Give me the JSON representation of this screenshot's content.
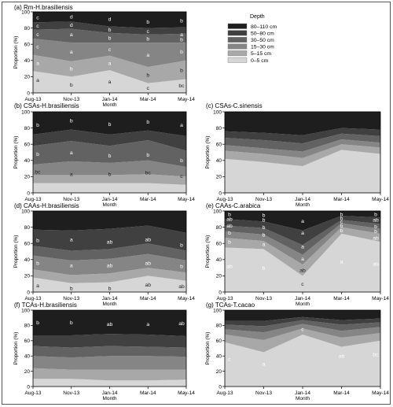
{
  "legend": {
    "title": "Depth",
    "items": [
      {
        "label": "80–110 cm",
        "color": "#1e1e1e"
      },
      {
        "label": "50–80 cm",
        "color": "#404040"
      },
      {
        "label": "30–50 cm",
        "color": "#626262"
      },
      {
        "label": "15–30 cm",
        "color": "#858585"
      },
      {
        "label": "5–15 cm",
        "color": "#a8a8a8"
      },
      {
        "label": "0–5 cm",
        "color": "#d6d6d6"
      }
    ]
  },
  "chart_data": [
    {
      "type": "area",
      "title": "(a) Rm-H.brasiliensis",
      "xlabel": "Month",
      "ylabel": "Proportion (%)",
      "ylim": [
        0,
        100
      ],
      "categories": [
        "Aug-13",
        "Nov-13",
        "Jan-14",
        "Mar-14",
        "May-14"
      ],
      "yticks": [
        0,
        20,
        40,
        60,
        80,
        100
      ],
      "series": [
        {
          "name": "0–5 cm",
          "values": [
            27,
            20,
            28,
            12,
            17
          ]
        },
        {
          "name": "5–15 cm",
          "values": [
            20,
            19,
            18,
            20,
            23
          ]
        },
        {
          "name": "15–30 cm",
          "values": [
            20,
            23,
            16,
            30,
            22
          ]
        },
        {
          "name": "30–50 cm",
          "values": [
            11,
            17,
            12,
            10,
            11
          ]
        },
        {
          "name": "50–80 cm",
          "values": [
            9,
            9,
            8,
            8,
            8
          ]
        },
        {
          "name": "80–110 cm",
          "values": [
            13,
            12,
            18,
            20,
            19
          ]
        }
      ],
      "annotations": [
        {
          "x": 0,
          "y": 16,
          "text": "a"
        },
        {
          "x": 1,
          "y": 10,
          "text": "b"
        },
        {
          "x": 2,
          "y": 14,
          "text": "a"
        },
        {
          "x": 3,
          "y": 6,
          "text": "c"
        },
        {
          "x": 4,
          "y": 9,
          "text": "bc"
        },
        {
          "x": 0,
          "y": 37,
          "text": "a"
        },
        {
          "x": 1,
          "y": 30,
          "text": "b"
        },
        {
          "x": 2,
          "y": 37,
          "text": "a"
        },
        {
          "x": 3,
          "y": 22,
          "text": "b"
        },
        {
          "x": 4,
          "y": 28,
          "text": "b"
        },
        {
          "x": 0,
          "y": 57,
          "text": "c"
        },
        {
          "x": 1,
          "y": 51,
          "text": "a"
        },
        {
          "x": 2,
          "y": 54,
          "text": "c"
        },
        {
          "x": 3,
          "y": 47,
          "text": "a"
        },
        {
          "x": 4,
          "y": 51,
          "text": "b"
        },
        {
          "x": 0,
          "y": 72,
          "text": "c"
        },
        {
          "x": 1,
          "y": 72,
          "text": "a"
        },
        {
          "x": 2,
          "y": 68,
          "text": "b"
        },
        {
          "x": 3,
          "y": 67,
          "text": "b"
        },
        {
          "x": 4,
          "y": 66,
          "text": "b"
        },
        {
          "x": 0,
          "y": 83,
          "text": "c"
        },
        {
          "x": 1,
          "y": 84,
          "text": "d"
        },
        {
          "x": 2,
          "y": 78,
          "text": "b"
        },
        {
          "x": 3,
          "y": 76,
          "text": "c"
        },
        {
          "x": 4,
          "y": 72,
          "text": "a"
        },
        {
          "x": 0,
          "y": 93,
          "text": "c"
        },
        {
          "x": 1,
          "y": 94,
          "text": "d"
        },
        {
          "x": 2,
          "y": 91,
          "text": "d"
        },
        {
          "x": 3,
          "y": 88,
          "text": "b"
        },
        {
          "x": 4,
          "y": 89,
          "text": "b"
        }
      ]
    },
    {
      "type": "area",
      "title": "(b) CSAs-H.brasiliensis",
      "xlabel": "Month",
      "ylabel": "Proportion (%)",
      "ylim": [
        0,
        100
      ],
      "categories": [
        "Aug-13",
        "Nov-13",
        "Jan-14",
        "Mar-14",
        "May-14"
      ],
      "yticks": [
        0,
        20,
        40,
        60,
        80,
        100
      ],
      "series": [
        {
          "name": "0–5 cm",
          "values": [
            12,
            12,
            12,
            12,
            10
          ]
        },
        {
          "name": "5–15 cm",
          "values": [
            10,
            10,
            10,
            11,
            10
          ]
        },
        {
          "name": "15–30 cm",
          "values": [
            13,
            17,
            15,
            17,
            12
          ]
        },
        {
          "name": "30–50 cm",
          "values": [
            23,
            25,
            21,
            25,
            20
          ]
        },
        {
          "name": "50–80 cm",
          "values": [
            14,
            14,
            14,
            12,
            18
          ]
        },
        {
          "name": "80–110 cm",
          "values": [
            28,
            22,
            28,
            23,
            30
          ]
        }
      ],
      "annotations": [
        {
          "x": 0,
          "y": 26,
          "text": "bc"
        },
        {
          "x": 1,
          "y": 23,
          "text": "a"
        },
        {
          "x": 2,
          "y": 23,
          "text": "b"
        },
        {
          "x": 3,
          "y": 25,
          "text": "bc"
        },
        {
          "x": 4,
          "y": 21,
          "text": "c"
        },
        {
          "x": 0,
          "y": 48,
          "text": "b"
        },
        {
          "x": 1,
          "y": 50,
          "text": "a"
        },
        {
          "x": 2,
          "y": 46,
          "text": "b"
        },
        {
          "x": 3,
          "y": 47,
          "text": "b"
        },
        {
          "x": 4,
          "y": 40,
          "text": "b"
        },
        {
          "x": 0,
          "y": 84,
          "text": "b"
        },
        {
          "x": 1,
          "y": 89,
          "text": "b"
        },
        {
          "x": 2,
          "y": 85,
          "text": "b"
        },
        {
          "x": 3,
          "y": 88,
          "text": "b"
        },
        {
          "x": 4,
          "y": 84,
          "text": "a"
        }
      ]
    },
    {
      "type": "area",
      "title": "(c) CSAs-C.sinensis",
      "xlabel": "Month",
      "ylabel": "Proportion (%)",
      "ylim": [
        0,
        100
      ],
      "categories": [
        "Aug-13",
        "Nov-13",
        "Jan-14",
        "Mar-14",
        "May-14"
      ],
      "yticks": [
        0,
        20,
        40,
        60,
        80,
        100
      ],
      "series": [
        {
          "name": "0–5 cm",
          "values": [
            42,
            38,
            33,
            53,
            48
          ]
        },
        {
          "name": "5–15 cm",
          "values": [
            10,
            10,
            10,
            7,
            8
          ]
        },
        {
          "name": "15–30 cm",
          "values": [
            7,
            7,
            8,
            6,
            6
          ]
        },
        {
          "name": "30–50 cm",
          "values": [
            9,
            10,
            10,
            7,
            8
          ]
        },
        {
          "name": "50–80 cm",
          "values": [
            8,
            9,
            10,
            7,
            8
          ]
        },
        {
          "name": "80–110 cm",
          "values": [
            24,
            26,
            29,
            20,
            22
          ]
        }
      ],
      "annotations": []
    },
    {
      "type": "area",
      "title": "(d) CAAs-H.brasiliensis",
      "xlabel": "Month",
      "ylabel": "Proportion (%)",
      "ylim": [
        0,
        100
      ],
      "categories": [
        "Aug-13",
        "Nov-13",
        "Jan-14",
        "Mar-14",
        "May-14"
      ],
      "yticks": [
        0,
        20,
        40,
        60,
        80,
        100
      ],
      "series": [
        {
          "name": "0–5 cm",
          "values": [
            18,
            11,
            12,
            20,
            14
          ]
        },
        {
          "name": "5–15 cm",
          "values": [
            10,
            10,
            11,
            10,
            10
          ]
        },
        {
          "name": "15–30 cm",
          "values": [
            17,
            18,
            18,
            17,
            15
          ]
        },
        {
          "name": "30–50 cm",
          "values": [
            12,
            12,
            12,
            13,
            12
          ]
        },
        {
          "name": "50–80 cm",
          "values": [
            20,
            25,
            25,
            22,
            22
          ]
        },
        {
          "name": "80–110 cm",
          "values": [
            23,
            24,
            22,
            18,
            27
          ]
        }
      ],
      "annotations": [
        {
          "x": 0,
          "y": 8,
          "text": "a"
        },
        {
          "x": 1,
          "y": 5,
          "text": "b"
        },
        {
          "x": 2,
          "y": 5,
          "text": "b"
        },
        {
          "x": 3,
          "y": 9,
          "text": "ab"
        },
        {
          "x": 4,
          "y": 7,
          "text": "ab"
        },
        {
          "x": 0,
          "y": 36,
          "text": "b"
        },
        {
          "x": 1,
          "y": 33,
          "text": "a"
        },
        {
          "x": 2,
          "y": 33,
          "text": "ab"
        },
        {
          "x": 3,
          "y": 36,
          "text": "ab"
        },
        {
          "x": 4,
          "y": 32,
          "text": "b"
        },
        {
          "x": 0,
          "y": 64,
          "text": "b"
        },
        {
          "x": 1,
          "y": 65,
          "text": "a"
        },
        {
          "x": 2,
          "y": 62,
          "text": "ab"
        },
        {
          "x": 3,
          "y": 65,
          "text": "ab"
        },
        {
          "x": 4,
          "y": 58,
          "text": "b"
        }
      ]
    },
    {
      "type": "area",
      "title": "(e) CAAs-C.arabica",
      "xlabel": "Month",
      "ylabel": "Proportion (%)",
      "ylim": [
        0,
        100
      ],
      "categories": [
        "Aug-13",
        "Nov-13",
        "Jan-14",
        "Mar-14",
        "May-14"
      ],
      "yticks": [
        0,
        20,
        40,
        60,
        80,
        100
      ],
      "series": [
        {
          "name": "0–5 cm",
          "values": [
            55,
            53,
            20,
            72,
            62
          ]
        },
        {
          "name": "5–15 cm",
          "values": [
            12,
            10,
            14,
            8,
            10
          ]
        },
        {
          "name": "15–30 cm",
          "values": [
            8,
            8,
            12,
            5,
            6
          ]
        },
        {
          "name": "30–50 cm",
          "values": [
            7,
            8,
            12,
            4,
            6
          ]
        },
        {
          "name": "50–80 cm",
          "values": [
            8,
            8,
            18,
            5,
            8
          ]
        },
        {
          "name": "80–110 cm",
          "values": [
            10,
            13,
            24,
            6,
            8
          ]
        }
      ],
      "annotations": [
        {
          "x": 0,
          "y": 32,
          "text": "ab"
        },
        {
          "x": 1,
          "y": 30,
          "text": "b"
        },
        {
          "x": 2,
          "y": 10,
          "text": "c"
        },
        {
          "x": 3,
          "y": 38,
          "text": "a"
        },
        {
          "x": 4,
          "y": 35,
          "text": "ab"
        },
        {
          "x": 0,
          "y": 62,
          "text": "b"
        },
        {
          "x": 1,
          "y": 59,
          "text": "a"
        },
        {
          "x": 2,
          "y": 27,
          "text": "ab"
        },
        {
          "x": 3,
          "y": 76,
          "text": "b"
        },
        {
          "x": 4,
          "y": 67,
          "text": "ab"
        },
        {
          "x": 0,
          "y": 73,
          "text": "b"
        },
        {
          "x": 1,
          "y": 71,
          "text": "b"
        },
        {
          "x": 2,
          "y": 41,
          "text": "a"
        },
        {
          "x": 3,
          "y": 82,
          "text": "b"
        },
        {
          "x": 4,
          "y": 75,
          "text": "b"
        },
        {
          "x": 0,
          "y": 82,
          "text": "ab"
        },
        {
          "x": 1,
          "y": 80,
          "text": "b"
        },
        {
          "x": 2,
          "y": 56,
          "text": "a"
        },
        {
          "x": 3,
          "y": 87,
          "text": "c"
        },
        {
          "x": 4,
          "y": 81,
          "text": "b"
        },
        {
          "x": 0,
          "y": 90,
          "text": "ab"
        },
        {
          "x": 1,
          "y": 89,
          "text": "b"
        },
        {
          "x": 2,
          "y": 73,
          "text": "a"
        },
        {
          "x": 3,
          "y": 91,
          "text": "b"
        },
        {
          "x": 4,
          "y": 89,
          "text": "ab"
        },
        {
          "x": 0,
          "y": 96,
          "text": "b"
        },
        {
          "x": 1,
          "y": 95,
          "text": "b"
        },
        {
          "x": 2,
          "y": 88,
          "text": "a"
        },
        {
          "x": 3,
          "y": 96,
          "text": "b"
        },
        {
          "x": 4,
          "y": 96,
          "text": "b"
        }
      ]
    },
    {
      "type": "area",
      "title": "(f) TCAs-H.brasiliensis",
      "xlabel": "Month",
      "ylabel": "Proportion (%)",
      "ylim": [
        0,
        100
      ],
      "categories": [
        "Aug-13",
        "Nov-13",
        "Jan-14",
        "Mar-14",
        "May-14"
      ],
      "yticks": [
        0,
        20,
        40,
        60,
        80,
        100
      ],
      "series": [
        {
          "name": "0–5 cm",
          "values": [
            10,
            10,
            8,
            8,
            9
          ]
        },
        {
          "name": "5–15 cm",
          "values": [
            14,
            12,
            14,
            14,
            13
          ]
        },
        {
          "name": "15–30 cm",
          "values": [
            16,
            16,
            18,
            18,
            17
          ]
        },
        {
          "name": "30–50 cm",
          "values": [
            13,
            13,
            13,
            12,
            12
          ]
        },
        {
          "name": "50–80 cm",
          "values": [
            14,
            16,
            16,
            16,
            15
          ]
        },
        {
          "name": "80–110 cm",
          "values": [
            33,
            33,
            31,
            32,
            34
          ]
        }
      ],
      "annotations": [
        {
          "x": 0,
          "y": 84,
          "text": "b"
        },
        {
          "x": 1,
          "y": 84,
          "text": "b"
        },
        {
          "x": 2,
          "y": 82,
          "text": "ab"
        },
        {
          "x": 3,
          "y": 82,
          "text": "a"
        },
        {
          "x": 4,
          "y": 83,
          "text": "ab"
        }
      ]
    },
    {
      "type": "area",
      "title": "(g) TCAs-T.cacao",
      "xlabel": "Month",
      "ylabel": "Proportion (%)",
      "ylim": [
        0,
        100
      ],
      "categories": [
        "Aug-13",
        "Nov-13",
        "Jan-14",
        "Mar-14",
        "May-14"
      ],
      "yticks": [
        0,
        20,
        40,
        60,
        80,
        100
      ],
      "series": [
        {
          "name": "0–5 cm",
          "values": [
            58,
            45,
            68,
            52,
            60
          ]
        },
        {
          "name": "5–15 cm",
          "values": [
            10,
            16,
            8,
            12,
            10
          ]
        },
        {
          "name": "15–30 cm",
          "values": [
            7,
            10,
            6,
            9,
            8
          ]
        },
        {
          "name": "30–50 cm",
          "values": [
            6,
            8,
            5,
            8,
            6
          ]
        },
        {
          "name": "50–80 cm",
          "values": [
            5,
            7,
            4,
            6,
            5
          ]
        },
        {
          "name": "80–110 cm",
          "values": [
            14,
            14,
            9,
            13,
            11
          ]
        }
      ],
      "annotations": [
        {
          "x": 0,
          "y": 36,
          "text": "c"
        },
        {
          "x": 1,
          "y": 30,
          "text": "a"
        },
        {
          "x": 2,
          "y": 75,
          "text": "c"
        },
        {
          "x": 3,
          "y": 40,
          "text": "ab"
        },
        {
          "x": 4,
          "y": 42,
          "text": "bc"
        }
      ]
    }
  ]
}
